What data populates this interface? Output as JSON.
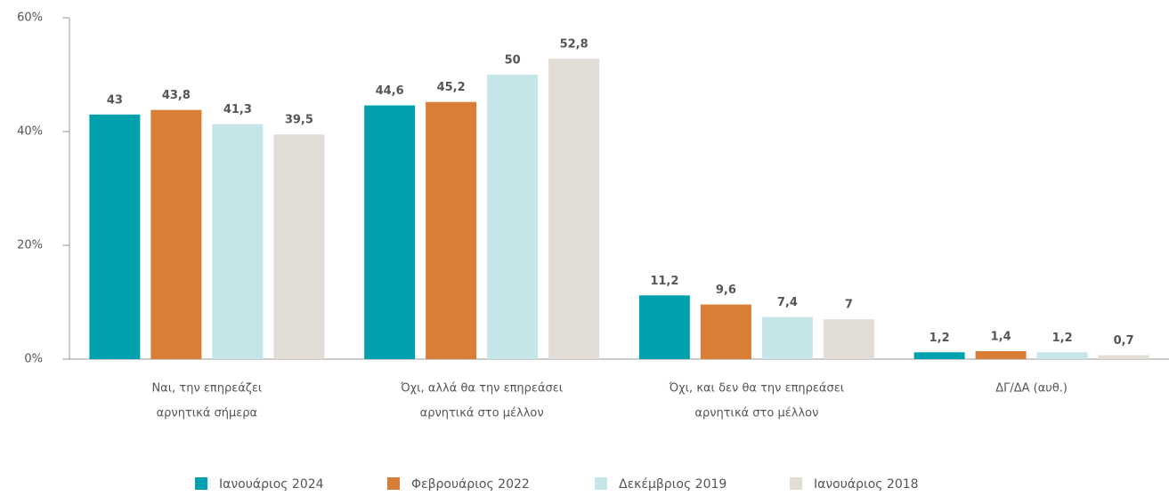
{
  "chart_data": {
    "type": "bar",
    "categories": [
      [
        "Ναι, την επηρεάζει",
        "αρνητικά σήμερα"
      ],
      [
        "Όχι, αλλά θα την επηρεάσει",
        "αρνητικά στο μέλλον"
      ],
      [
        "Όχι, και δεν θα την επηρεάσει",
        "αρνητικά στο μέλλον"
      ],
      [
        "ΔΓ/ΔΑ (αυθ.)"
      ]
    ],
    "series": [
      {
        "name": "Ιανουάριος 2024",
        "color": "#00a0ad",
        "values": [
          43,
          44.6,
          11.2,
          1.2
        ],
        "value_labels": [
          "43",
          "44,6",
          "11,2",
          "1,2"
        ]
      },
      {
        "name": "Φεβρουάριος 2022",
        "color": "#d97f35",
        "values": [
          43.8,
          45.2,
          9.6,
          1.4
        ],
        "value_labels": [
          "43,8",
          "45,2",
          "9,6",
          "1,4"
        ]
      },
      {
        "name": "Δεκέμβριος 2019",
        "color": "#c5e6e8",
        "values": [
          41.3,
          50,
          7.4,
          1.2
        ],
        "value_labels": [
          "41,3",
          "50",
          "7,4",
          "1,2"
        ]
      },
      {
        "name": "Ιανουάριος 2018",
        "color": "#e2dcd7",
        "values": [
          39.5,
          52.8,
          7,
          0.7
        ],
        "value_labels": [
          "39,5",
          "52,8",
          "7",
          "0,7"
        ]
      }
    ],
    "ylim": [
      0,
      60
    ],
    "yticks": [
      {
        "value": 0,
        "label": "0%"
      },
      {
        "value": 20,
        "label": "20%"
      },
      {
        "value": 40,
        "label": "40%"
      },
      {
        "value": 60,
        "label": "60%"
      }
    ],
    "legend": "bottom"
  }
}
